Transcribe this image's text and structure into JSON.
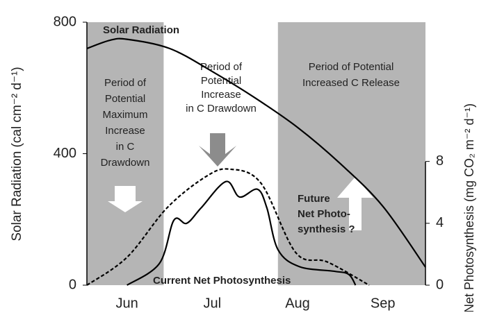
{
  "chart_data": {
    "type": "line",
    "x_label": null,
    "y_label": "Solar Radiation (cal cm⁻² d⁻¹)",
    "y2_label": "Net Photosynthesis (mg CO₂ m⁻² d⁻¹)",
    "xlim": [
      -0.47,
      3.5
    ],
    "xticks": [
      {
        "value": 0,
        "label": "Jun"
      },
      {
        "value": 1,
        "label": "Jul"
      },
      {
        "value": 2,
        "label": "Aug"
      },
      {
        "value": 3,
        "label": "Sep"
      }
    ],
    "ylim": [
      0,
      800
    ],
    "yticks": [
      0,
      400,
      800
    ],
    "y2lim": [
      0,
      17
    ],
    "y2ticks": [
      0,
      4,
      8
    ],
    "shaded_periods": [
      {
        "x": [
          -0.47,
          0.43
        ],
        "color": "#b5b5b5",
        "label": [
          "Period of",
          "Potential",
          "Maximum",
          "Increase",
          "in C",
          "Drawdown"
        ]
      },
      {
        "x": [
          1.77,
          3.5
        ],
        "color": "#b5b5b5",
        "label": [
          "Period of Potential",
          "Increased C Release"
        ]
      }
    ],
    "annotations": [
      [
        "Period of",
        "Potential",
        "Increase",
        "in C Drawdown"
      ]
    ],
    "series": [
      {
        "name": "Solar Radiation",
        "color": "#000000",
        "dash": false,
        "x": [
          -0.47,
          -0.2,
          0,
          0.5,
          1,
          1.5,
          2,
          2.5,
          3,
          3.5
        ],
        "values": [
          720,
          745,
          748,
          720,
          650,
          570,
          480,
          370,
          240,
          55
        ]
      },
      {
        "name": "Current Net Photosynthesis",
        "color": "#000000",
        "dash": false,
        "axis": "y2",
        "x": [
          0,
          0.38,
          0.55,
          0.7,
          0.87,
          1.16,
          1.32,
          1.53,
          1.64,
          1.77,
          2.02,
          2.43,
          2.6,
          2.68
        ],
        "values": [
          0,
          1.4,
          4.2,
          4.0,
          5.0,
          6.7,
          5.7,
          6.2,
          5.0,
          2.3,
          1.2,
          0.9,
          0.7,
          0
        ]
      },
      {
        "label": [
          "Future",
          "Net Photo-",
          "synthesis ?"
        ],
        "color": "#000000",
        "dash": true,
        "axis": "y2",
        "x": [
          -0.47,
          0,
          0.47,
          0.92,
          1.2,
          1.57,
          1.98,
          2.35,
          2.84
        ],
        "values": [
          0,
          1.8,
          5.0,
          7.0,
          7.5,
          6.6,
          2.1,
          1.5,
          0
        ]
      }
    ]
  }
}
